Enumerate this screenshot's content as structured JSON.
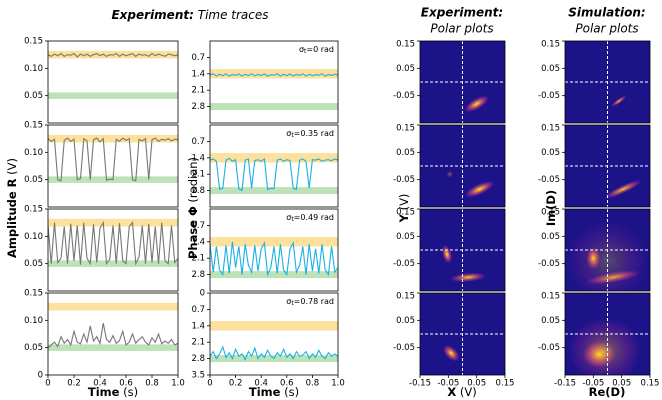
{
  "chart_data": [
    {
      "type": "line",
      "title": "Experiment:",
      "subtitle": "Time traces",
      "ylabel": "Amplitude R",
      "yunit": "(V)",
      "xlabel": "Time",
      "xunit": "(s)",
      "color": "#777777",
      "x": [
        0,
        0.025,
        0.05,
        0.075,
        0.1,
        0.125,
        0.15,
        0.175,
        0.2,
        0.225,
        0.25,
        0.275,
        0.3,
        0.325,
        0.35,
        0.375,
        0.4,
        0.425,
        0.45,
        0.475,
        0.5,
        0.525,
        0.55,
        0.575,
        0.6,
        0.625,
        0.65,
        0.675,
        0.7,
        0.725,
        0.75,
        0.775,
        0.8,
        0.825,
        0.85,
        0.875,
        0.9,
        0.925,
        0.95,
        0.975,
        1
      ],
      "xlim": [
        0,
        1
      ],
      "xticks": [
        0,
        0.2,
        0.4,
        0.6,
        0.8,
        {
          "value": 1,
          "label": "1.0"
        }
      ],
      "ylim": [
        0,
        0.15
      ],
      "bands": [
        {
          "color": "#fbd67a",
          "center": 0.125,
          "halfwidth": 0.007
        },
        {
          "color": "#a8d8a0",
          "center": 0.05,
          "halfwidth": 0.006
        }
      ],
      "panels": [
        {
          "yticks": [
            0.05,
            {
              "value": 0.1,
              "label": "0.10"
            },
            0.15
          ],
          "values": [
            0.125,
            0.122,
            0.126,
            0.123,
            0.127,
            0.122,
            0.125,
            0.124,
            0.127,
            0.121,
            0.126,
            0.123,
            0.126,
            0.122,
            0.125,
            0.127,
            0.123,
            0.126,
            0.122,
            0.125,
            0.124,
            0.127,
            0.122,
            0.126,
            0.123,
            0.125,
            0.127,
            0.122,
            0.126,
            0.124,
            0.125,
            0.122,
            0.127,
            0.123,
            0.126,
            0.124,
            0.122,
            0.126,
            0.125,
            0.123,
            0.125
          ]
        },
        {
          "yticks": [
            0.05,
            {
              "value": 0.1,
              "label": "0.10"
            },
            0.15
          ],
          "values": [
            0.125,
            0.12,
            0.124,
            0.05,
            0.048,
            0.122,
            0.126,
            0.12,
            0.124,
            0.05,
            0.052,
            0.125,
            0.121,
            0.05,
            0.123,
            0.126,
            0.119,
            0.125,
            0.049,
            0.051,
            0.05,
            0.124,
            0.12,
            0.126,
            0.122,
            0.125,
            0.05,
            0.048,
            0.124,
            0.121,
            0.125,
            0.05,
            0.123,
            0.126,
            0.12,
            0.124,
            0.122,
            0.125,
            0.121,
            0.124,
            0.123
          ]
        },
        {
          "yticks": [
            0.05,
            {
              "value": 0.1,
              "label": "0.10"
            },
            0.15
          ],
          "values": [
            0.12,
            0.05,
            0.125,
            0.052,
            0.06,
            0.118,
            0.05,
            0.123,
            0.055,
            0.12,
            0.048,
            0.125,
            0.06,
            0.05,
            0.122,
            0.052,
            0.115,
            0.125,
            0.05,
            0.058,
            0.12,
            0.05,
            0.124,
            0.055,
            0.05,
            0.118,
            0.125,
            0.05,
            0.062,
            0.12,
            0.05,
            0.123,
            0.052,
            0.118,
            0.05,
            0.125,
            0.055,
            0.05,
            0.12,
            0.052,
            0.06
          ]
        },
        {
          "yticks": [
            0,
            0.05,
            {
              "value": 0.1,
              "label": "0.10"
            },
            0.15
          ],
          "values": [
            0.05,
            0.055,
            0.06,
            0.052,
            0.07,
            0.058,
            0.065,
            0.055,
            0.08,
            0.06,
            0.057,
            0.075,
            0.06,
            0.09,
            0.062,
            0.07,
            0.058,
            0.095,
            0.065,
            0.06,
            0.072,
            0.058,
            0.063,
            0.08,
            0.055,
            0.06,
            0.075,
            0.058,
            0.065,
            0.07,
            0.06,
            0.055,
            0.068,
            0.06,
            0.075,
            0.057,
            0.062,
            0.058,
            0.065,
            0.055,
            0.058
          ]
        }
      ]
    },
    {
      "type": "line",
      "ylabel": "Phase Φ",
      "yunit": "(radian)",
      "xlabel": "Time",
      "xunit": "(s)",
      "color": "#1ab0e6",
      "invert_y": true,
      "x": [
        0,
        0.025,
        0.05,
        0.075,
        0.1,
        0.125,
        0.15,
        0.175,
        0.2,
        0.225,
        0.25,
        0.275,
        0.3,
        0.325,
        0.35,
        0.375,
        0.4,
        0.425,
        0.45,
        0.475,
        0.5,
        0.525,
        0.55,
        0.575,
        0.6,
        0.625,
        0.65,
        0.675,
        0.7,
        0.725,
        0.75,
        0.775,
        0.8,
        0.825,
        0.85,
        0.875,
        0.9,
        0.925,
        0.95,
        0.975,
        1
      ],
      "xlim": [
        0,
        1
      ],
      "xticks": [
        0,
        0.2,
        0.4,
        0.6,
        0.8,
        {
          "value": 1,
          "label": "1.0"
        }
      ],
      "ylim": [
        0,
        3.5
      ],
      "bands": [
        {
          "color": "#fbd67a",
          "center": 1.4,
          "halfwidth": 0.2
        },
        {
          "color": "#a8d8a0",
          "center": 2.8,
          "halfwidth": 0.15
        }
      ],
      "panels": [
        {
          "sigma": "σ",
          "sub": "t",
          "rest": "=0 rad",
          "yticks": [
            0.7,
            1.4,
            2.1,
            2.8
          ],
          "values": [
            1.45,
            1.4,
            1.5,
            1.42,
            1.48,
            1.4,
            1.5,
            1.43,
            1.47,
            1.41,
            1.5,
            1.42,
            1.48,
            1.4,
            1.49,
            1.43,
            1.47,
            1.41,
            1.5,
            1.44,
            1.46,
            1.4,
            1.5,
            1.42,
            1.48,
            1.41,
            1.49,
            1.43,
            1.47,
            1.4,
            1.5,
            1.42,
            1.48,
            1.44,
            1.46,
            1.4,
            1.5,
            1.43,
            1.47,
            1.42,
            1.45
          ]
        },
        {
          "sigma": "σ",
          "sub": "t",
          "rest": "=0.35 rad",
          "yticks": [
            0.7,
            1.4,
            2.1,
            2.8
          ],
          "values": [
            1.5,
            1.45,
            1.55,
            2.75,
            2.7,
            1.5,
            1.42,
            1.55,
            1.48,
            2.72,
            2.8,
            1.5,
            1.45,
            2.7,
            1.52,
            1.48,
            1.55,
            1.45,
            2.75,
            2.7,
            2.72,
            1.5,
            1.45,
            1.55,
            1.48,
            1.52,
            2.7,
            2.75,
            1.5,
            1.45,
            1.55,
            2.7,
            1.48,
            1.5,
            1.45,
            1.55,
            1.5,
            1.48,
            1.52,
            1.45,
            1.5
          ]
        },
        {
          "sigma": "σ",
          "sub": "t",
          "rest": "=0.49 rad",
          "yticks": [
            0.7,
            1.4,
            2.1,
            2.8
          ],
          "values": [
            1.5,
            2.7,
            1.6,
            2.6,
            2.8,
            1.55,
            2.75,
            1.4,
            2.5,
            1.6,
            2.8,
            1.5,
            2.4,
            2.7,
            1.55,
            2.65,
            1.7,
            1.45,
            2.8,
            2.5,
            1.6,
            2.75,
            1.5,
            2.6,
            2.8,
            1.7,
            1.45,
            2.7,
            2.4,
            1.6,
            2.8,
            1.5,
            2.65,
            1.7,
            2.75,
            1.5,
            2.6,
            2.8,
            1.6,
            2.7,
            2.5
          ]
        },
        {
          "sigma": "σ",
          "sub": "t",
          "rest": "=0.78 rad",
          "yticks": [
            0,
            0.7,
            1.4,
            2.1,
            2.8,
            3.5
          ],
          "values": [
            2.7,
            2.5,
            2.8,
            2.6,
            2.3,
            2.75,
            2.55,
            2.8,
            2.4,
            2.7,
            2.6,
            2.85,
            2.5,
            2.7,
            2.35,
            2.8,
            2.6,
            2.75,
            2.45,
            2.7,
            2.8,
            2.55,
            2.7,
            2.4,
            2.75,
            2.6,
            2.8,
            2.5,
            2.7,
            2.65,
            2.5,
            2.8,
            2.6,
            2.75,
            2.45,
            2.7,
            2.8,
            2.55,
            2.7,
            2.6,
            2.7
          ]
        }
      ]
    },
    {
      "type": "heatmap",
      "title": "Experiment:",
      "subtitle": "Polar plots",
      "ylabel": "Y",
      "yunit": "(V)",
      "xlabel": "X",
      "xunit": "(V)",
      "background": "#1c1389",
      "colormap": [
        "#f0f921",
        "#fca636",
        "#e16462",
        "#b12a90"
      ],
      "xlim": [
        -0.15,
        0.15
      ],
      "ylim": [
        -0.15,
        0.15
      ],
      "xticks": [
        -0.15,
        -0.05,
        0.05,
        0.15
      ],
      "yticks": [
        -0.05,
        0.05,
        0.15
      ],
      "guides": {
        "x": 0,
        "y": 0
      },
      "panels": [
        {
          "blobs": [
            {
              "x": 0.05,
              "y": -0.08,
              "rx": 0.03,
              "ry": 0.012,
              "angle": 30,
              "intensity": 1
            }
          ]
        },
        {
          "blobs": [
            {
              "x": 0.06,
              "y": -0.085,
              "rx": 0.035,
              "ry": 0.012,
              "angle": 25,
              "intensity": 1
            },
            {
              "x": -0.045,
              "y": -0.03,
              "rx": 0.008,
              "ry": 0.008,
              "angle": 0,
              "intensity": 0.4
            }
          ]
        },
        {
          "blobs": [
            {
              "x": -0.055,
              "y": -0.015,
              "rx": 0.01,
              "ry": 0.022,
              "angle": 15,
              "intensity": 1
            },
            {
              "x": 0.02,
              "y": -0.1,
              "rx": 0.04,
              "ry": 0.01,
              "angle": 5,
              "intensity": 0.9
            }
          ]
        },
        {
          "blobs": [
            {
              "x": -0.04,
              "y": -0.07,
              "rx": 0.022,
              "ry": 0.013,
              "angle": -45,
              "intensity": 1
            }
          ]
        }
      ]
    },
    {
      "type": "heatmap",
      "title": "Simulation:",
      "subtitle": "Polar plots",
      "ylabel": "Im(D)",
      "xlabel": "Re(D)",
      "background": "#1c1389",
      "colormap": [
        "#f0f921",
        "#fca636",
        "#e16462",
        "#b12a90"
      ],
      "xlim": [
        -0.15,
        0.15
      ],
      "ylim": [
        -0.15,
        0.15
      ],
      "xticks": [
        -0.15,
        -0.05,
        0.05,
        0.15
      ],
      "yticks": [
        -0.05,
        0.05,
        0.15
      ],
      "guides": {
        "x": 0,
        "y": 0
      },
      "panels": [
        {
          "blobs": [
            {
              "x": 0.04,
              "y": -0.07,
              "rx": 0.02,
              "ry": 0.005,
              "angle": 35,
              "intensity": 0.9
            }
          ]
        },
        {
          "blobs": [
            {
              "x": 0.055,
              "y": -0.085,
              "rx": 0.045,
              "ry": 0.009,
              "angle": 25,
              "intensity": 0.9
            }
          ]
        },
        {
          "blobs": [
            {
              "x": -0.05,
              "y": -0.03,
              "rx": 0.015,
              "ry": 0.025,
              "angle": 0,
              "intensity": 1
            },
            {
              "x": 0.02,
              "y": -0.1,
              "rx": 0.06,
              "ry": 0.012,
              "angle": 10,
              "intensity": 0.8
            },
            {
              "x": 0,
              "y": -0.04,
              "rx": 0.09,
              "ry": 0.09,
              "angle": 0,
              "intensity": 0.25
            }
          ]
        },
        {
          "blobs": [
            {
              "x": -0.03,
              "y": -0.075,
              "rx": 0.035,
              "ry": 0.03,
              "angle": 0,
              "intensity": 1
            },
            {
              "x": -0.01,
              "y": -0.06,
              "rx": 0.08,
              "ry": 0.075,
              "angle": 0,
              "intensity": 0.4
            }
          ]
        }
      ]
    }
  ]
}
